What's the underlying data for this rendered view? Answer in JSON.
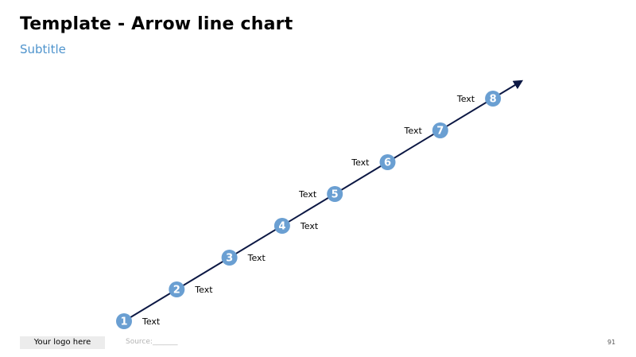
{
  "title": "Template - Arrow line chart",
  "subtitle": "Subtitle",
  "steps": [
    {
      "number": "1",
      "label": "Text"
    },
    {
      "number": "2",
      "label": "Text"
    },
    {
      "number": "3",
      "label": "Text"
    },
    {
      "number": "4",
      "label": "Text"
    },
    {
      "number": "5",
      "label": "Text"
    },
    {
      "number": "6",
      "label": "Text"
    },
    {
      "number": "7",
      "label": "Text"
    },
    {
      "number": "8",
      "label": "Text"
    }
  ],
  "footer": {
    "logo": "Your logo here",
    "source": "Source:_______",
    "page_number": "91"
  },
  "colors": {
    "accent": "#4f94cd",
    "node": "#6a9fd2",
    "arrow": "#0c1844"
  }
}
